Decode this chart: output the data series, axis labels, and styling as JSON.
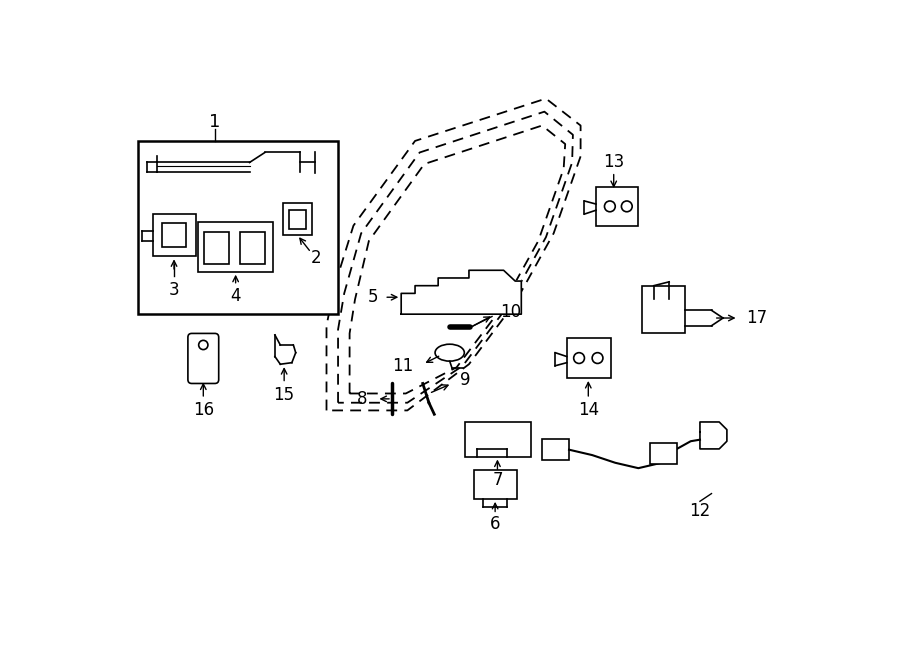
{
  "background_color": "#ffffff",
  "fig_width": 9.0,
  "fig_height": 6.61,
  "dpi": 100
}
